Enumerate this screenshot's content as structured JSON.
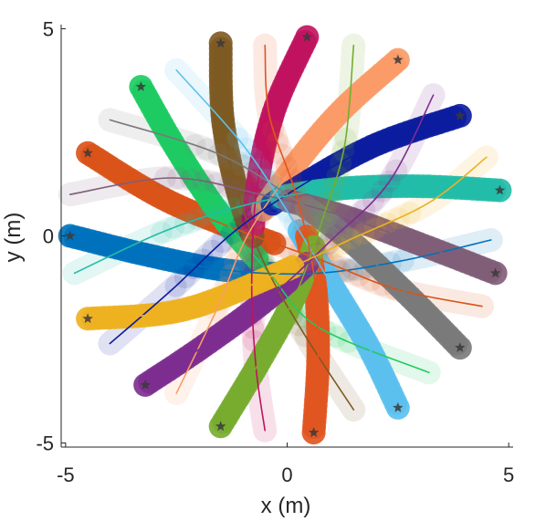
{
  "chart_data": {
    "type": "line",
    "xlabel": "x (m)",
    "ylabel": "y (m)",
    "xlim": [
      -5.1,
      5.1
    ],
    "ylim": [
      -5.1,
      5.1
    ],
    "x_ticks": [
      -5,
      0,
      5
    ],
    "y_ticks": [
      -5,
      0,
      5
    ],
    "x_tick_labels": [
      "-5",
      "0",
      "5"
    ],
    "y_tick_labels": [
      "-5",
      "0",
      "5"
    ],
    "grid": false,
    "legend": "none",
    "marker": "star",
    "series": [
      {
        "color": "#0072BD",
        "path": [
          [
            -4.9,
            0.0
          ],
          [
            -3.0,
            -0.5
          ],
          [
            -1.2,
            -0.85
          ],
          [
            0.7,
            -0.9
          ],
          [
            2.6,
            -0.6
          ],
          [
            4.6,
            -0.1
          ]
        ]
      },
      {
        "color": "#D95319",
        "path": [
          [
            -4.5,
            2.0
          ],
          [
            -2.8,
            0.9
          ],
          [
            -1.0,
            0.1
          ],
          [
            0.8,
            -0.6
          ],
          [
            2.5,
            -1.3
          ],
          [
            4.4,
            -1.7
          ]
        ]
      },
      {
        "color": "#1ECB63",
        "path": [
          [
            -3.3,
            3.6
          ],
          [
            -2.5,
            2.1
          ],
          [
            -1.5,
            0.5
          ],
          [
            -0.4,
            -0.9
          ],
          [
            0.7,
            -2.2
          ],
          [
            3.2,
            -3.3
          ]
        ]
      },
      {
        "color": "#7E5A24",
        "path": [
          [
            -1.5,
            4.65
          ],
          [
            -1.45,
            2.8
          ],
          [
            -1.1,
            1.0
          ],
          [
            -0.5,
            -0.7
          ],
          [
            0.4,
            -2.4
          ],
          [
            1.5,
            -4.2
          ]
        ]
      },
      {
        "color": "#C0135F",
        "path": [
          [
            0.45,
            4.8
          ],
          [
            -0.3,
            3.0
          ],
          [
            -0.7,
            1.0
          ],
          [
            -0.8,
            -1.2
          ],
          [
            -0.7,
            -3.2
          ],
          [
            -0.5,
            -4.7
          ]
        ]
      },
      {
        "color": "#F99B68",
        "path": [
          [
            2.5,
            4.25
          ],
          [
            1.2,
            3.0
          ],
          [
            0.1,
            1.6
          ],
          [
            -0.9,
            0.0
          ],
          [
            -1.6,
            -1.8
          ],
          [
            -2.5,
            -3.8
          ]
        ]
      },
      {
        "color": "#0C1D9F",
        "path": [
          [
            3.9,
            2.9
          ],
          [
            2.0,
            2.2
          ],
          [
            0.3,
            1.2
          ],
          [
            -1.2,
            0.1
          ],
          [
            -2.6,
            -1.3
          ],
          [
            -4.0,
            -2.6
          ]
        ]
      },
      {
        "color": "#22BCA8",
        "path": [
          [
            4.8,
            1.1
          ],
          [
            2.8,
            1.2
          ],
          [
            0.8,
            1.1
          ],
          [
            -1.1,
            0.7
          ],
          [
            -2.8,
            0.1
          ],
          [
            -4.8,
            -0.9
          ]
        ]
      },
      {
        "color": "#7F5E78",
        "path": [
          [
            4.7,
            -0.9
          ],
          [
            3.0,
            -0.2
          ],
          [
            1.2,
            0.5
          ],
          [
            -0.6,
            1.0
          ],
          [
            -2.6,
            1.4
          ],
          [
            -4.9,
            1.0
          ]
        ]
      },
      {
        "color": "#7A7A7A",
        "path": [
          [
            3.9,
            -2.7
          ],
          [
            2.7,
            -1.4
          ],
          [
            1.4,
            -0.1
          ],
          [
            0.0,
            1.0
          ],
          [
            -1.6,
            2.0
          ],
          [
            -4.0,
            2.8
          ]
        ]
      },
      {
        "color": "#5CC0EE",
        "path": [
          [
            2.5,
            -4.15
          ],
          [
            1.8,
            -2.6
          ],
          [
            0.9,
            -1.0
          ],
          [
            0.0,
            0.6
          ],
          [
            -1.0,
            2.2
          ],
          [
            -2.5,
            4.0
          ]
        ]
      },
      {
        "color": "#E05520",
        "path": [
          [
            0.6,
            -4.75
          ],
          [
            0.7,
            -2.8
          ],
          [
            0.6,
            -0.9
          ],
          [
            0.2,
            1.0
          ],
          [
            -0.4,
            2.9
          ],
          [
            -0.5,
            4.6
          ]
        ]
      },
      {
        "color": "#77AC30",
        "path": [
          [
            -1.5,
            -4.6
          ],
          [
            -0.6,
            -3.0
          ],
          [
            0.2,
            -1.4
          ],
          [
            0.8,
            0.4
          ],
          [
            1.3,
            2.2
          ],
          [
            1.5,
            4.6
          ]
        ]
      },
      {
        "color": "#7D2E8F",
        "path": [
          [
            -3.2,
            -3.6
          ],
          [
            -1.8,
            -2.6
          ],
          [
            -0.3,
            -1.4
          ],
          [
            1.0,
            -0.1
          ],
          [
            2.3,
            1.3
          ],
          [
            3.3,
            3.4
          ]
        ]
      },
      {
        "color": "#EDB120",
        "path": [
          [
            -4.5,
            -2.0
          ],
          [
            -2.4,
            -1.8
          ],
          [
            -0.4,
            -1.0
          ],
          [
            1.4,
            -0.1
          ],
          [
            3.2,
            0.8
          ],
          [
            4.5,
            1.9
          ]
        ]
      }
    ]
  }
}
